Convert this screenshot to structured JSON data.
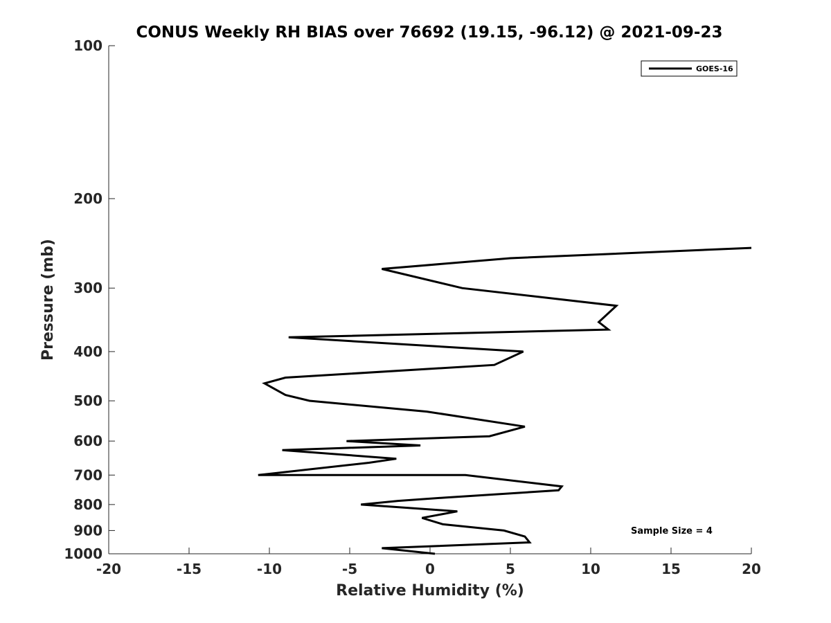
{
  "chart_data": {
    "type": "line",
    "title": "CONUS Weekly RH BIAS over 76692 (19.15, -96.12) @ 2021-09-23",
    "xlabel": "Relative Humidity (%)",
    "ylabel": "Pressure (mb)",
    "xlim": [
      -20,
      20
    ],
    "ylim": [
      100,
      1000
    ],
    "y_scale": "log",
    "y_reversed": true,
    "grid": false,
    "legend_position": "top-right",
    "x_ticks": [
      -20,
      -15,
      -10,
      -5,
      0,
      5,
      10,
      15,
      20
    ],
    "y_ticks": [
      100,
      200,
      300,
      400,
      500,
      600,
      700,
      800,
      900,
      1000
    ],
    "series": [
      {
        "name": "GOES-16",
        "color": "#000000",
        "points": [
          [
            0.3,
            1000
          ],
          [
            -3.0,
            975
          ],
          [
            6.2,
            950
          ],
          [
            5.9,
            925
          ],
          [
            4.6,
            900
          ],
          [
            0.8,
            875
          ],
          [
            -0.5,
            850
          ],
          [
            1.7,
            825
          ],
          [
            -4.3,
            800
          ],
          [
            -2.0,
            787
          ],
          [
            1.0,
            775
          ],
          [
            8.0,
            750
          ],
          [
            8.2,
            737
          ],
          [
            2.2,
            700
          ],
          [
            -10.7,
            700
          ],
          [
            -3.8,
            662
          ],
          [
            -2.1,
            650
          ],
          [
            -9.2,
            625
          ],
          [
            -0.6,
            612
          ],
          [
            -5.2,
            600
          ],
          [
            3.7,
            587
          ],
          [
            5.9,
            562
          ],
          [
            -0.2,
            525
          ],
          [
            -7.5,
            500
          ],
          [
            -9.0,
            487
          ],
          [
            -10.3,
            462
          ],
          [
            -9.0,
            450
          ],
          [
            4.0,
            425
          ],
          [
            5.8,
            400
          ],
          [
            -8.8,
            375
          ],
          [
            11.1,
            362
          ],
          [
            10.5,
            350
          ],
          [
            11.6,
            325
          ],
          [
            2.0,
            300
          ],
          [
            -3.0,
            275
          ],
          [
            5.0,
            262
          ],
          [
            20.0,
            250
          ]
        ]
      }
    ],
    "annotation": "Sample Size = 4"
  }
}
